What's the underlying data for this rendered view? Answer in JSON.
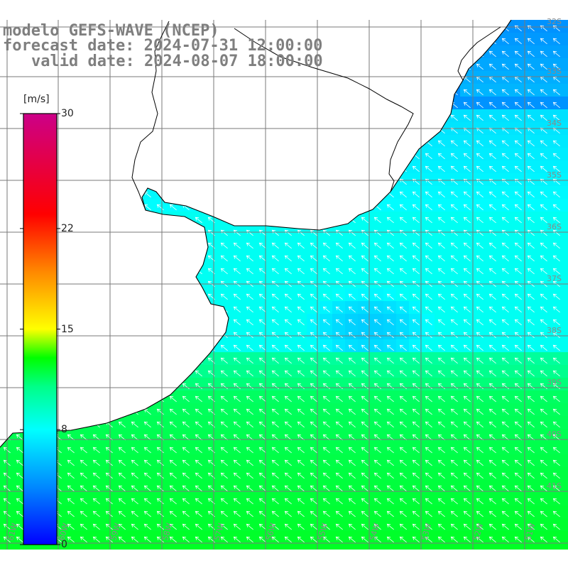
{
  "header": {
    "model_line": "modelo GEFS-WAVE (NCEP)",
    "forecast_line": "forecast date: 2024-07-31 12:00:00",
    "valid_line": "valid date: 2024-08-07 18:00:00"
  },
  "colorbar": {
    "unit": "[m/s]",
    "ticks": [
      {
        "label": "30",
        "value": 30
      },
      {
        "label": "22",
        "value": 22
      },
      {
        "label": "15",
        "value": 15
      },
      {
        "label": "8",
        "value": 8
      },
      {
        "label": "0",
        "value": 0
      }
    ],
    "stops": [
      {
        "v": 0,
        "c": "#0000ff"
      },
      {
        "v": 4,
        "c": "#0088ff"
      },
      {
        "v": 8,
        "c": "#00ffff"
      },
      {
        "v": 11,
        "c": "#00ff88"
      },
      {
        "v": 13,
        "c": "#00ff00"
      },
      {
        "v": 15,
        "c": "#ffff00"
      },
      {
        "v": 19,
        "c": "#ff8800"
      },
      {
        "v": 23,
        "c": "#ff0000"
      },
      {
        "v": 30,
        "c": "#cc0088"
      }
    ]
  },
  "map": {
    "field": "wind speed",
    "land_color": "#ffffff",
    "coast_color": "#000000",
    "grid_color": "#7a7a7a",
    "lat_labels_right": [
      "32S",
      "33S",
      "34S",
      "35S",
      "36S",
      "37S",
      "38S",
      "39S",
      "40S",
      "41S"
    ],
    "lon_labels_bottom": [
      "61W",
      "60W",
      "59W",
      "58W",
      "57W",
      "56W",
      "55W",
      "54W",
      "53W",
      "52W",
      "51W"
    ]
  }
}
